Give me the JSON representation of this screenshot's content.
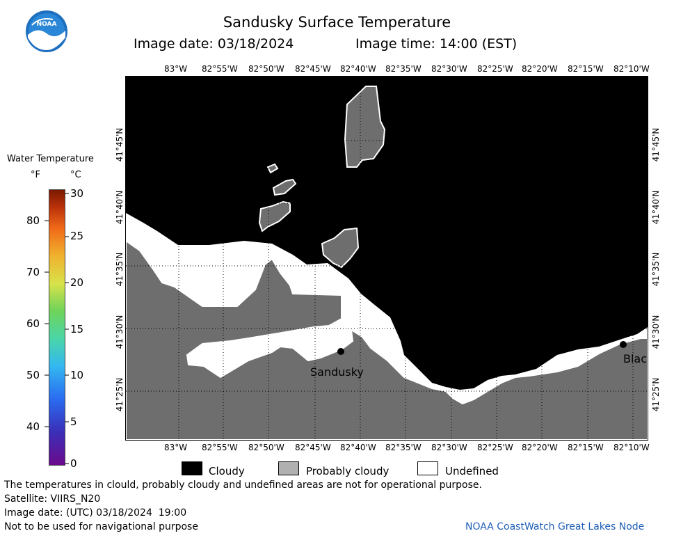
{
  "header": {
    "title": "Sandusky Surface Temperature",
    "image_date": "Image date: 03/18/2024",
    "image_time": "Image time: 14:00 (EST)"
  },
  "logo": {
    "text": "NOAA"
  },
  "colorbar": {
    "title": "Water Temperature",
    "unit_f": "°F",
    "unit_c": "°C",
    "f_ticks": [
      "80",
      "70",
      "60",
      "50",
      "40"
    ],
    "c_ticks": [
      "30",
      "25",
      "20",
      "15",
      "10",
      "5",
      "0"
    ]
  },
  "map": {
    "lon_labels": [
      "83°W",
      "82°55'W",
      "82°50'W",
      "82°45'W",
      "82°40'W",
      "82°35'W",
      "82°30'W",
      "82°25'W",
      "82°20'W",
      "82°15'W",
      "82°10'W"
    ],
    "lat_labels": [
      "41°45'N",
      "41°40'N",
      "41°35'N",
      "41°30'N",
      "41°25'N"
    ],
    "places": [
      {
        "name": "Sandusky"
      },
      {
        "name": "Blac"
      }
    ],
    "colors": {
      "cloudy": "#000000",
      "probably_cloudy": "#6e6e6e",
      "undefined": "#ffffff"
    }
  },
  "legend": {
    "cloudy": "Cloudy",
    "probably_cloudy": "Probably cloudy",
    "undefined": "Undefined"
  },
  "footer": {
    "disclaimer": "The temperatures in clould, probably cloudy and undefined areas are not for operational purpose.",
    "satellite": "Satellite: VIIRS_N20",
    "utc_date": "Image date: (UTC) 03/18/2024  19:00",
    "nav_warning": "Not to be used for navigational purpose",
    "credit": "NOAA CoastWatch Great Lakes Node"
  }
}
